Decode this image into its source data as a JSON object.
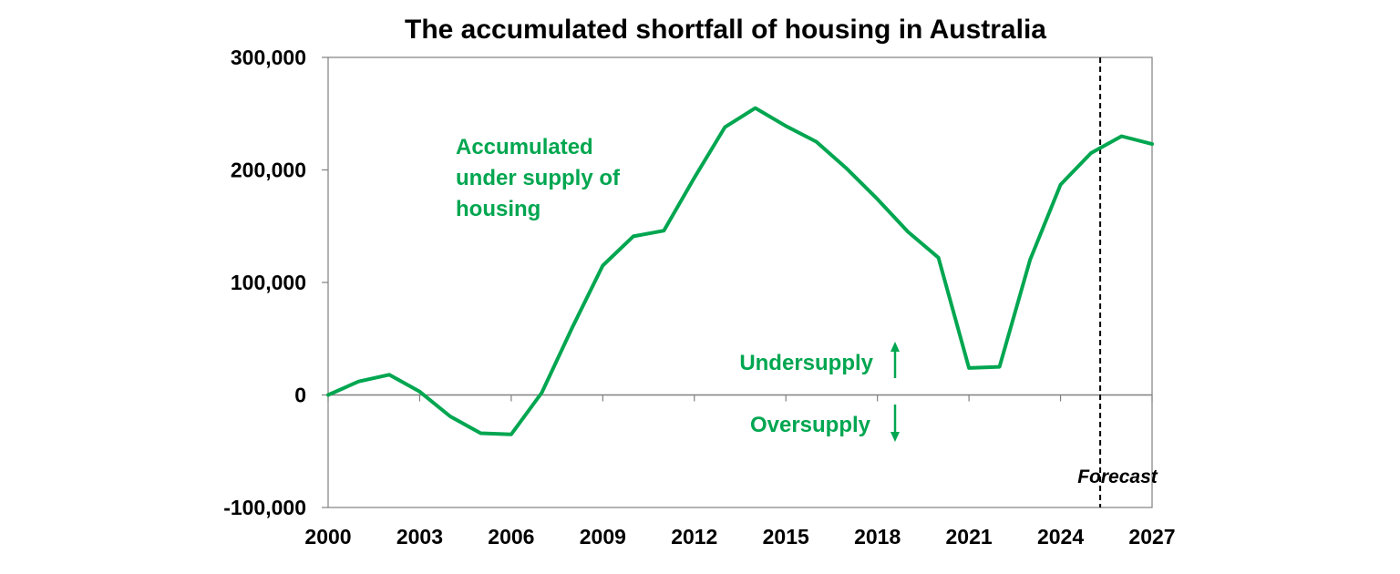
{
  "chart_data": {
    "type": "line",
    "title": "The accumulated shortfall of housing in Australia",
    "xlabel": "",
    "ylabel": "",
    "xlim": [
      2000,
      2027
    ],
    "ylim": [
      -100000,
      300000
    ],
    "x_ticks": [
      2000,
      2003,
      2006,
      2009,
      2012,
      2015,
      2018,
      2021,
      2024,
      2027
    ],
    "x_tick_labels": [
      "2000",
      "2003",
      "2006",
      "2009",
      "2012",
      "2015",
      "2018",
      "2021",
      "2024",
      "2027"
    ],
    "y_ticks": [
      -100000,
      0,
      100000,
      200000,
      300000
    ],
    "y_tick_labels": [
      "-100,000",
      "0",
      "100,000",
      "200,000",
      "300,000"
    ],
    "grid": false,
    "legend": "none",
    "series": [
      {
        "color": "#00A650",
        "x": [
          2000,
          2001,
          2002,
          2003,
          2004,
          2005,
          2006,
          2007,
          2008,
          2009,
          2010,
          2011,
          2012,
          2013,
          2014,
          2015,
          2016,
          2017,
          2018,
          2019,
          2020,
          2021,
          2022,
          2023,
          2024,
          2025,
          2026,
          2027
        ],
        "values": [
          0,
          12000,
          18000,
          3000,
          -19000,
          -34000,
          -35000,
          2000,
          60000,
          115000,
          141000,
          146000,
          193000,
          238000,
          255000,
          239000,
          225000,
          201000,
          174000,
          145000,
          122000,
          24000,
          25000,
          120000,
          187000,
          215000,
          230000,
          223000
        ]
      }
    ],
    "annotations": {
      "series_label": [
        "Accumulated",
        "under supply of",
        "housing"
      ],
      "undersupply": "Undersupply",
      "oversupply": "Oversupply",
      "forecast": "Forecast"
    },
    "forecast_start_x": 2025.3,
    "colors": {
      "line": "#00A650",
      "axis": "#808080",
      "forecast_line": "#000000"
    }
  }
}
